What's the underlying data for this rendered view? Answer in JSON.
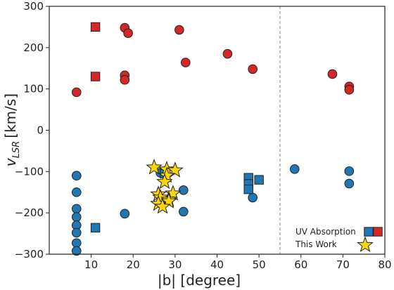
{
  "chart_data": {
    "type": "scatter",
    "xlabel": "|b| [degree]",
    "ylabel_main": "v",
    "ylabel_sub": "LSR",
    "ylabel_unit": "[km/s]",
    "xlim": [
      0,
      80
    ],
    "ylim": [
      -300,
      300
    ],
    "xticks": [
      10,
      20,
      30,
      40,
      50,
      60,
      70,
      80
    ],
    "yticks": [
      -300,
      -200,
      -100,
      0,
      100,
      200,
      300
    ],
    "grid": false,
    "legend_position": "bottom-right",
    "reference_line": {
      "x": 55,
      "style": "dashed"
    },
    "colors": {
      "positive": "#d62728",
      "negative": "#1f77b4",
      "this_work": "#ffd700",
      "edge": "#222222"
    },
    "series": [
      {
        "group": "uv-absorption",
        "color": "#d62728",
        "marker": "circle",
        "points": [
          [
            6.5,
            92
          ],
          [
            18,
            248
          ],
          [
            18.8,
            235
          ],
          [
            18,
            133
          ],
          [
            18,
            122
          ],
          [
            31,
            243
          ],
          [
            32.5,
            164
          ],
          [
            42.5,
            185
          ],
          [
            48.5,
            148
          ],
          [
            67.5,
            136
          ],
          [
            71.5,
            106
          ],
          [
            71.5,
            98
          ]
        ]
      },
      {
        "group": "uv-absorption",
        "color": "#d62728",
        "marker": "square",
        "points": [
          [
            11,
            250
          ],
          [
            11,
            130
          ]
        ]
      },
      {
        "group": "uv-absorption",
        "color": "#1f77b4",
        "marker": "circle",
        "points": [
          [
            6.5,
            -110
          ],
          [
            6.5,
            -150
          ],
          [
            6.5,
            -190
          ],
          [
            6.5,
            -210
          ],
          [
            6.5,
            -230
          ],
          [
            6.5,
            -248
          ],
          [
            6.5,
            -273
          ],
          [
            6.5,
            -292
          ],
          [
            18,
            -202
          ],
          [
            26.5,
            -103
          ],
          [
            32,
            -145
          ],
          [
            32,
            -197
          ],
          [
            48.5,
            -163
          ],
          [
            58.5,
            -94
          ],
          [
            71.5,
            -99
          ],
          [
            71.5,
            -129
          ]
        ]
      },
      {
        "group": "uv-absorption",
        "color": "#1f77b4",
        "marker": "square",
        "points": [
          [
            11,
            -236
          ],
          [
            27.5,
            -105
          ],
          [
            47.5,
            -115
          ],
          [
            47.5,
            -130
          ],
          [
            47.5,
            -143
          ],
          [
            50,
            -120
          ]
        ]
      },
      {
        "group": "this-work",
        "color": "#ffd700",
        "marker": "star",
        "points": [
          [
            25,
            -90
          ],
          [
            28,
            -95
          ],
          [
            30,
            -97
          ],
          [
            28,
            -110
          ],
          [
            27.5,
            -125
          ],
          [
            26,
            -155
          ],
          [
            29.5,
            -153
          ],
          [
            26.5,
            -163
          ],
          [
            28.5,
            -168
          ],
          [
            26,
            -178
          ],
          [
            28.5,
            -172
          ],
          [
            27,
            -185
          ]
        ]
      }
    ],
    "legend": [
      {
        "label": "UV Absorption",
        "markers": [
          "square-blue",
          "square-red"
        ]
      },
      {
        "label": "This Work",
        "markers": [
          "star-yellow"
        ]
      }
    ]
  }
}
